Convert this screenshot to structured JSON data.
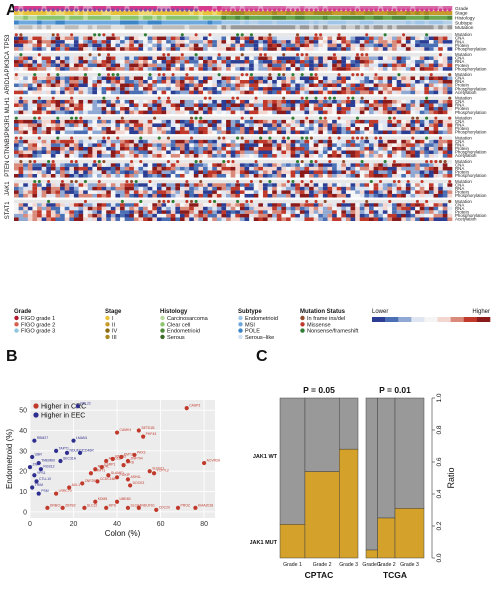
{
  "panels": {
    "a": "A",
    "b": "B",
    "c": "C"
  },
  "heatmap": {
    "top_track_labels": [
      "Grade",
      "Stage",
      "Histology",
      "Subtype",
      "Mutation"
    ],
    "top_track_colors": [
      [
        "#d63a8e",
        "#d66aa8",
        "#e08abc",
        "#e0a0c8"
      ],
      [
        "#e9c33a",
        "#c79a2a",
        "#f0d870",
        "#a98a20"
      ],
      [
        "#8bc46e",
        "#6aa84f",
        "#b8d9a0",
        "#4f8a3a"
      ],
      [
        "#6fa8dc",
        "#9fc5e8",
        "#3d85c6",
        "#b4cfe8"
      ],
      [
        "#bbbbbb",
        "#999999",
        "#dddddd",
        "#cccccc"
      ]
    ],
    "genes": [
      {
        "name": "TP53",
        "rows": [
          "Mutation",
          "CNA",
          "RNA",
          "Protein",
          "Phosphorylation"
        ]
      },
      {
        "name": "PIK3CA",
        "rows": [
          "Mutation",
          "CNA",
          "RNA",
          "Protein",
          "Phosphorylation"
        ]
      },
      {
        "name": "ARID1A",
        "rows": [
          "Mutation",
          "CNA",
          "RNA",
          "Protein",
          "Phosphorylation",
          "Acetylation"
        ]
      },
      {
        "name": "MLH1",
        "rows": [
          "Mutation",
          "CNA",
          "RNA",
          "Protein",
          "Phosphorylation"
        ]
      },
      {
        "name": "PIK3R1",
        "rows": [
          "Mutation",
          "CNA",
          "RNA",
          "Protein",
          "Phosphorylation"
        ]
      },
      {
        "name": "CTNNB1",
        "rows": [
          "Mutation",
          "CNA",
          "RNA",
          "Protein",
          "Phosphorylation",
          "Acetylation"
        ]
      },
      {
        "name": "PTEN",
        "rows": [
          "Mutation",
          "CNA",
          "RNA",
          "Protein",
          "Phosphorylation"
        ]
      },
      {
        "name": "JAK1",
        "rows": [
          "Mutation",
          "CNA",
          "RNA",
          "Protein",
          "Phosphorylation"
        ]
      },
      {
        "name": "STAT1",
        "rows": [
          "Mutation",
          "CNA",
          "RNA",
          "Protein",
          "Phosphorylation",
          "Acetylation"
        ]
      }
    ],
    "legend": {
      "groups": [
        {
          "title": "Grade",
          "items": [
            {
              "label": "FIGO grade 1",
              "color": "#b2182b"
            },
            {
              "label": "FIGO grade 2",
              "color": "#d6604d"
            },
            {
              "label": "FIGO grade 3",
              "color": "#92c5de"
            }
          ]
        },
        {
          "title": "Stage",
          "items": [
            {
              "label": "I",
              "color": "#e9c33a"
            },
            {
              "label": "II",
              "color": "#c79a2a"
            },
            {
              "label": "IV",
              "color": "#8b6a10"
            },
            {
              "label": "III",
              "color": "#a98a20"
            }
          ]
        },
        {
          "title": "Histology",
          "items": [
            {
              "label": "Carcinosarcoma",
              "color": "#b8d9a0"
            },
            {
              "label": "Clear cell",
              "color": "#8bc46e"
            },
            {
              "label": "Endometrioid",
              "color": "#4f8a3a"
            },
            {
              "label": "Serous",
              "color": "#3d6a2a"
            }
          ]
        },
        {
          "title": "Subtype",
          "items": [
            {
              "label": "Endometrioid",
              "color": "#9fc5e8"
            },
            {
              "label": "MSI",
              "color": "#6fa8dc"
            },
            {
              "label": "POLE",
              "color": "#3d85c6"
            },
            {
              "label": "Serous–like",
              "color": "#cfe2f3"
            }
          ]
        },
        {
          "title": "Mutation Status",
          "items": [
            {
              "label": "In frame ins/del",
              "color": "#8e4a2a"
            },
            {
              "label": "Missense",
              "color": "#c0392b"
            },
            {
              "label": "Nonsense/frameshift",
              "color": "#2e7d32"
            }
          ]
        }
      ],
      "scale_low": "Lower",
      "scale_high": "Higher",
      "scale_colors": [
        "#2c3e94",
        "#4a6fb5",
        "#8fa9d4",
        "#dfe6f2",
        "#f5f5f5",
        "#f2d6cf",
        "#d98a7a",
        "#c0392b",
        "#8b1a1a"
      ]
    }
  },
  "chart_data": [
    {
      "type": "scatter",
      "title": "",
      "xlabel": "Colon (%)",
      "ylabel": "Endometroid (%)",
      "xlim": [
        0,
        85
      ],
      "ylim": [
        -3,
        55
      ],
      "xticks": [
        0,
        20,
        40,
        60,
        80
      ],
      "yticks": [
        0,
        10,
        20,
        30,
        40,
        50
      ],
      "grid": true,
      "legend_position": "top-left",
      "series": [
        {
          "name": "Higher in CRC",
          "color": "#c0392b",
          "points": [
            {
              "x": 72,
              "y": 51,
              "label": "CASP3"
            },
            {
              "x": 50,
              "y": 40,
              "label": "SETD1B"
            },
            {
              "x": 40,
              "y": 39,
              "label": "CAMK4"
            },
            {
              "x": 52,
              "y": 37,
              "label": "PHF43"
            },
            {
              "x": 80,
              "y": 24,
              "label": "ACVR2A"
            },
            {
              "x": 48,
              "y": 28,
              "label": "PAX3"
            },
            {
              "x": 42,
              "y": 27,
              "label": "KMT2C"
            },
            {
              "x": 38,
              "y": 26,
              "label": "RNF43"
            },
            {
              "x": 45,
              "y": 25,
              "label": "ZNF704"
            },
            {
              "x": 35,
              "y": 25,
              "label": "ARID1B"
            },
            {
              "x": 43,
              "y": 23,
              "label": "SIRS"
            },
            {
              "x": 33,
              "y": 22,
              "label": "ESRP1"
            },
            {
              "x": 30,
              "y": 21,
              "label": "NOC4L"
            },
            {
              "x": 55,
              "y": 20,
              "label": "SLFN11"
            },
            {
              "x": 57,
              "y": 19,
              "label": "TCF7L2"
            },
            {
              "x": 28,
              "y": 19,
              "label": "DNMT1"
            },
            {
              "x": 36,
              "y": 18,
              "label": "SLAMF1"
            },
            {
              "x": 40,
              "y": 17,
              "label": "PGKIP"
            },
            {
              "x": 45,
              "y": 16,
              "label": "ASH1L"
            },
            {
              "x": 31,
              "y": 15,
              "label": "CCDC168"
            },
            {
              "x": 24,
              "y": 14,
              "label": "ZNF292"
            },
            {
              "x": 46,
              "y": 13,
              "label": "DOCK3"
            },
            {
              "x": 18,
              "y": 12,
              "label": "AXL1"
            },
            {
              "x": 12,
              "y": 9,
              "label": "LRRC70"
            },
            {
              "x": 50,
              "y": 2,
              "label": "NDUFS1"
            },
            {
              "x": 58,
              "y": 1,
              "label": "CDC20"
            },
            {
              "x": 68,
              "y": 2,
              "label": "PROZ"
            },
            {
              "x": 76,
              "y": 2,
              "label": "KIAA2018"
            },
            {
              "x": 8,
              "y": 2,
              "label": "DRBCI"
            },
            {
              "x": 15,
              "y": 2,
              "label": "ZBTB2"
            },
            {
              "x": 25,
              "y": 2,
              "label": "SLC22"
            },
            {
              "x": 35,
              "y": 2,
              "label": "MPS"
            },
            {
              "x": 45,
              "y": 2,
              "label": "SLCA4"
            },
            {
              "x": 30,
              "y": 5,
              "label": "KDM5"
            },
            {
              "x": 40,
              "y": 5,
              "label": "UBE4B"
            }
          ]
        },
        {
          "name": "Higher in EEC",
          "color": "#2e2e8f",
          "points": [
            {
              "x": 22,
              "y": 52,
              "label": "RPL22"
            },
            {
              "x": 2,
              "y": 35,
              "label": "RBM27"
            },
            {
              "x": 20,
              "y": 35,
              "label": "LMAN1"
            },
            {
              "x": 12,
              "y": 30,
              "label": "TAPT1"
            },
            {
              "x": 17,
              "y": 29,
              "label": "NDUFC2"
            },
            {
              "x": 23,
              "y": 29,
              "label": "CD46R"
            },
            {
              "x": 1,
              "y": 27,
              "label": "UBR"
            },
            {
              "x": 4,
              "y": 24,
              "label": "TMEM60"
            },
            {
              "x": 14,
              "y": 25,
              "label": "SEC31A"
            },
            {
              "x": 0,
              "y": 22,
              "label": "ZNF"
            },
            {
              "x": 5,
              "y": 21,
              "label": "RGS12"
            },
            {
              "x": 2,
              "y": 18,
              "label": "YPS1"
            },
            {
              "x": 3,
              "y": 15,
              "label": "CTLL10"
            },
            {
              "x": 1,
              "y": 12,
              "label": "TRIM"
            },
            {
              "x": 4,
              "y": 9,
              "label": "PSM"
            }
          ]
        }
      ]
    },
    {
      "type": "bar",
      "stacked": true,
      "title": "",
      "xlabel": "",
      "ylabel": "Ratio",
      "ylim": [
        0,
        1
      ],
      "yticks": [
        "0.0",
        "0.2",
        "0.4",
        "0.6",
        "0.8",
        "1.0"
      ],
      "legend_position": "left",
      "series_names": [
        "JAK1 WT",
        "JAK1 MUT"
      ],
      "colors": {
        "wt": "#999999",
        "mut": "#d4a12a"
      },
      "groups": [
        {
          "name": "CPTAC",
          "pvalue": "P = 0.05",
          "categories": [
            "Grade 1",
            "Grade 2",
            "Grade 3"
          ],
          "mut": [
            0.21,
            0.54,
            0.68
          ],
          "widths": [
            0.32,
            0.44,
            0.24
          ]
        },
        {
          "name": "TCGA",
          "pvalue": "P = 0.01",
          "categories": [
            "Grade 1",
            "Grade 2",
            "Grade 3"
          ],
          "mut": [
            0.05,
            0.25,
            0.31
          ],
          "widths": [
            0.2,
            0.3,
            0.5
          ]
        }
      ]
    }
  ]
}
